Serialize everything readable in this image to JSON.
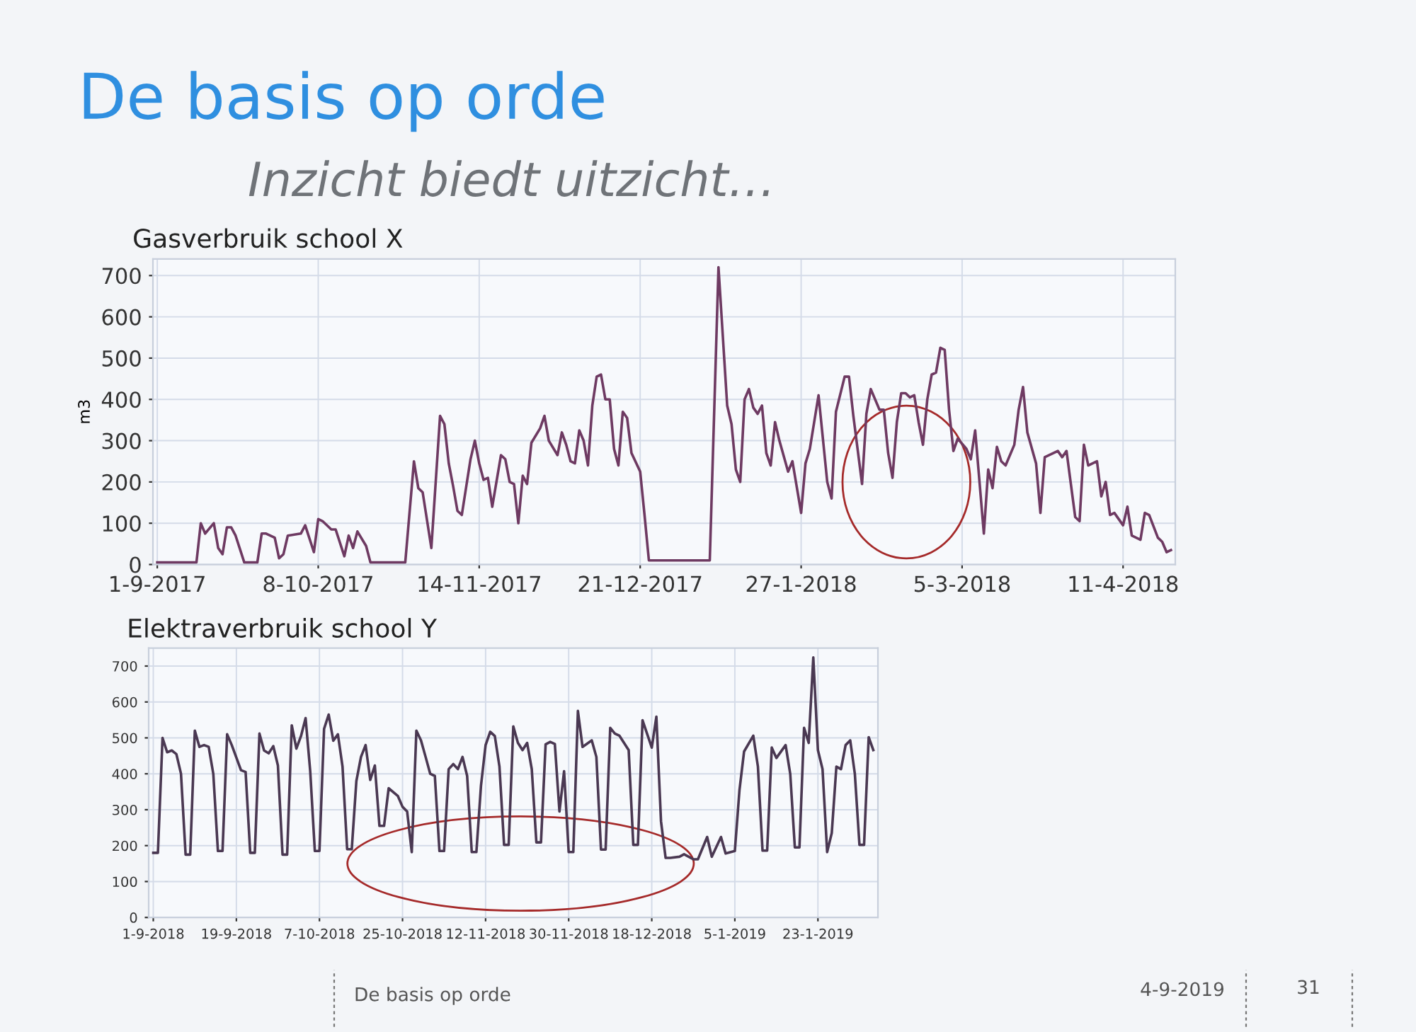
{
  "chart_data": [
    {
      "type": "line",
      "title": "Gasverbruik school X",
      "ylabel": "m3",
      "annotations": [
        "De basis op orde",
        "Inzicht biedt uitzicht…"
      ],
      "x": [
        "2017-09-01",
        "2017-09-10",
        "2017-09-11",
        "2017-09-12",
        "2017-09-14",
        "2017-09-15",
        "2017-09-16",
        "2017-09-17",
        "2017-09-18",
        "2017-09-19",
        "2017-09-21",
        "2017-09-24",
        "2017-09-25",
        "2017-09-26",
        "2017-09-28",
        "2017-09-29",
        "2017-09-30",
        "2017-10-01",
        "2017-10-04",
        "2017-10-05",
        "2017-10-07",
        "2017-10-08",
        "2017-10-09",
        "2017-10-11",
        "2017-10-12",
        "2017-10-14",
        "2017-10-15",
        "2017-10-16",
        "2017-10-17",
        "2017-10-19",
        "2017-10-20",
        "2017-10-28",
        "2017-10-30",
        "2017-10-31",
        "2017-11-01",
        "2017-11-03",
        "2017-11-05",
        "2017-11-06",
        "2017-11-07",
        "2017-11-08",
        "2017-11-09",
        "2017-11-10",
        "2017-11-12",
        "2017-11-13",
        "2017-11-14",
        "2017-11-15",
        "2017-11-16",
        "2017-11-17",
        "2017-11-19",
        "2017-11-20",
        "2017-11-21",
        "2017-11-22",
        "2017-11-23",
        "2017-11-24",
        "2017-11-25",
        "2017-11-26",
        "2017-11-28",
        "2017-11-29",
        "2017-11-30",
        "2017-12-02",
        "2017-12-03",
        "2017-12-04",
        "2017-12-05",
        "2017-12-06",
        "2017-12-07",
        "2017-12-08",
        "2017-12-09",
        "2017-12-10",
        "2017-12-11",
        "2017-12-12",
        "2017-12-13",
        "2017-12-14",
        "2017-12-15",
        "2017-12-16",
        "2017-12-17",
        "2017-12-18",
        "2017-12-19",
        "2017-12-21",
        "2017-12-22",
        "2017-12-23",
        "2018-01-06",
        "2018-01-08",
        "2018-01-10",
        "2018-01-11",
        "2018-01-12",
        "2018-01-13",
        "2018-01-14",
        "2018-01-15",
        "2018-01-16",
        "2018-01-17",
        "2018-01-18",
        "2018-01-19",
        "2018-01-20",
        "2018-01-21",
        "2018-01-22",
        "2018-01-24",
        "2018-01-25",
        "2018-01-27",
        "2018-01-28",
        "2018-01-29",
        "2018-01-30",
        "2018-01-31",
        "2018-02-02",
        "2018-02-03",
        "2018-02-04",
        "2018-02-06",
        "2018-02-07",
        "2018-02-08",
        "2018-02-10",
        "2018-02-11",
        "2018-02-12",
        "2018-02-14",
        "2018-02-15",
        "2018-02-16",
        "2018-02-17",
        "2018-02-18",
        "2018-02-19",
        "2018-02-20",
        "2018-02-21",
        "2018-02-22",
        "2018-02-23",
        "2018-02-24",
        "2018-02-25",
        "2018-02-26",
        "2018-02-27",
        "2018-02-28",
        "2018-03-01",
        "2018-03-02",
        "2018-03-03",
        "2018-03-04",
        "2018-03-06",
        "2018-03-07",
        "2018-03-08",
        "2018-03-09",
        "2018-03-10",
        "2018-03-11",
        "2018-03-12",
        "2018-03-13",
        "2018-03-14",
        "2018-03-15",
        "2018-03-17",
        "2018-03-18",
        "2018-03-19",
        "2018-03-20",
        "2018-03-22",
        "2018-03-23",
        "2018-03-24",
        "2018-03-27",
        "2018-03-28",
        "2018-03-29",
        "2018-03-31",
        "2018-04-01",
        "2018-04-02",
        "2018-04-03",
        "2018-04-05",
        "2018-04-06",
        "2018-04-07",
        "2018-04-08",
        "2018-04-09",
        "2018-04-11",
        "2018-04-12",
        "2018-04-13",
        "2018-04-15",
        "2018-04-16",
        "2018-04-17",
        "2018-04-19",
        "2018-04-20",
        "2018-04-21",
        "2018-04-22"
      ],
      "series": [
        {
          "color": "#6e3a62",
          "values": [
            5,
            5,
            100,
            75,
            100,
            40,
            25,
            90,
            90,
            70,
            5,
            5,
            75,
            75,
            65,
            15,
            25,
            70,
            75,
            95,
            30,
            110,
            105,
            85,
            85,
            20,
            70,
            40,
            80,
            45,
            5,
            5,
            250,
            185,
            175,
            40,
            360,
            340,
            245,
            190,
            130,
            120,
            255,
            300,
            245,
            205,
            210,
            140,
            265,
            255,
            200,
            195,
            100,
            215,
            195,
            295,
            330,
            360,
            300,
            265,
            320,
            290,
            250,
            245,
            325,
            300,
            240,
            385,
            455,
            460,
            400,
            400,
            280,
            240,
            370,
            355,
            270,
            225,
            120,
            10,
            10,
            720,
            385,
            340,
            230,
            200,
            400,
            425,
            380,
            365,
            385,
            270,
            240,
            345,
            300,
            225,
            250,
            125,
            245,
            280,
            345,
            410,
            200,
            160,
            370,
            455,
            455,
            360,
            195,
            365,
            425,
            375,
            375,
            270,
            210,
            345,
            415,
            415,
            405,
            410,
            345,
            290,
            400,
            460,
            465,
            525,
            520,
            375,
            275,
            305,
            280,
            255,
            325,
            200,
            75,
            230,
            185,
            285,
            250,
            240,
            290,
            375,
            430,
            320,
            245,
            125,
            260,
            275,
            260,
            275,
            115,
            105,
            290,
            240,
            250,
            165,
            200,
            120,
            125,
            95,
            140,
            70,
            60,
            125,
            120,
            65,
            55,
            30,
            35
          ]
        }
      ],
      "xlim": [
        "2017-08-31",
        "2018-04-23"
      ],
      "xticks": [
        {
          "value": "2017-09-01",
          "label": "1-9-2017"
        },
        {
          "value": "2017-10-08",
          "label": "8-10-2017"
        },
        {
          "value": "2017-11-14",
          "label": "14-11-2017"
        },
        {
          "value": "2017-12-21",
          "label": "21-12-2017"
        },
        {
          "value": "2018-01-27",
          "label": "27-1-2018"
        },
        {
          "value": "2018-03-05",
          "label": "5-3-2018"
        },
        {
          "value": "2018-04-11",
          "label": "11-4-2018"
        }
      ],
      "ylim": [
        0,
        740
      ],
      "yticks": [
        0,
        100,
        200,
        300,
        400,
        500,
        600,
        700
      ],
      "grid": true,
      "line_style": "solid"
    },
    {
      "type": "line",
      "title": "Elektraverbruik school Y",
      "annotations": [
        "De basis op orde",
        "4-9-2019",
        "31"
      ],
      "x": [
        "2018-09-01",
        "2018-09-02",
        "2018-09-03",
        "2018-09-04",
        "2018-09-05",
        "2018-09-06",
        "2018-09-07",
        "2018-09-08",
        "2018-09-09",
        "2018-09-10",
        "2018-09-11",
        "2018-09-12",
        "2018-09-13",
        "2018-09-14",
        "2018-09-15",
        "2018-09-16",
        "2018-09-17",
        "2018-09-18",
        "2018-09-19",
        "2018-09-20",
        "2018-09-21",
        "2018-09-22",
        "2018-09-23",
        "2018-09-24",
        "2018-09-25",
        "2018-09-26",
        "2018-09-27",
        "2018-09-28",
        "2018-09-29",
        "2018-09-30",
        "2018-10-01",
        "2018-10-02",
        "2018-10-03",
        "2018-10-04",
        "2018-10-05",
        "2018-10-06",
        "2018-10-07",
        "2018-10-08",
        "2018-10-09",
        "2018-10-10",
        "2018-10-11",
        "2018-10-12",
        "2018-10-13",
        "2018-10-14",
        "2018-10-15",
        "2018-10-16",
        "2018-10-17",
        "2018-10-18",
        "2018-10-19",
        "2018-10-20",
        "2018-10-21",
        "2018-10-22",
        "2018-10-24",
        "2018-10-25",
        "2018-10-26",
        "2018-10-27",
        "2018-10-28",
        "2018-10-29",
        "2018-10-30",
        "2018-10-31",
        "2018-11-01",
        "2018-11-02",
        "2018-11-03",
        "2018-11-04",
        "2018-11-05",
        "2018-11-06",
        "2018-11-07",
        "2018-11-08",
        "2018-11-09",
        "2018-11-10",
        "2018-11-11",
        "2018-11-12",
        "2018-11-13",
        "2018-11-14",
        "2018-11-15",
        "2018-11-16",
        "2018-11-17",
        "2018-11-18",
        "2018-11-19",
        "2018-11-20",
        "2018-11-21",
        "2018-11-22",
        "2018-11-23",
        "2018-11-24",
        "2018-11-25",
        "2018-11-26",
        "2018-11-27",
        "2018-11-28",
        "2018-11-29",
        "2018-11-30",
        "2018-12-01",
        "2018-12-02",
        "2018-12-03",
        "2018-12-05",
        "2018-12-06",
        "2018-12-07",
        "2018-12-08",
        "2018-12-09",
        "2018-12-10",
        "2018-12-11",
        "2018-12-13",
        "2018-12-14",
        "2018-12-15",
        "2018-12-16",
        "2018-12-18",
        "2018-12-19",
        "2018-12-20",
        "2018-12-21",
        "2018-12-22",
        "2018-12-24",
        "2018-12-25",
        "2018-12-26",
        "2018-12-27",
        "2018-12-28",
        "2018-12-30",
        "2018-12-31",
        "2019-01-02",
        "2019-01-03",
        "2019-01-05",
        "2019-01-06",
        "2019-01-07",
        "2019-01-09",
        "2019-01-10",
        "2019-01-11",
        "2019-01-12",
        "2019-01-13",
        "2019-01-14",
        "2019-01-16",
        "2019-01-17",
        "2019-01-18",
        "2019-01-19",
        "2019-01-20",
        "2019-01-21",
        "2019-01-22",
        "2019-01-23",
        "2019-01-24",
        "2019-01-25",
        "2019-01-26",
        "2019-01-27",
        "2019-01-28",
        "2019-01-29",
        "2019-01-30",
        "2019-01-31",
        "2019-02-01",
        "2019-02-02",
        "2019-02-03",
        "2019-02-04"
      ],
      "series": [
        {
          "color": "#4a3852",
          "values": [
            180,
            180,
            500,
            460,
            465,
            455,
            400,
            175,
            175,
            520,
            475,
            480,
            475,
            400,
            185,
            185,
            510,
            480,
            445,
            410,
            405,
            180,
            180,
            512,
            465,
            457,
            477,
            423,
            175,
            175,
            535,
            470,
            505,
            555,
            407,
            185,
            185,
            525,
            565,
            492,
            510,
            420,
            190,
            190,
            380,
            447,
            480,
            383,
            423,
            255,
            255,
            360,
            338,
            308,
            295,
            182,
            520,
            493,
            447,
            400,
            394,
            185,
            185,
            413,
            427,
            413,
            447,
            394,
            182,
            182,
            367,
            480,
            517,
            505,
            420,
            202,
            202,
            532,
            486,
            466,
            486,
            413,
            209,
            209,
            482,
            489,
            483,
            295,
            407,
            182,
            182,
            575,
            475,
            493,
            447,
            189,
            189,
            528,
            512,
            506,
            466,
            202,
            202,
            549,
            473,
            559,
            268,
            166,
            166,
            169,
            176,
            169,
            162,
            162,
            224,
            169,
            224,
            178,
            185,
            354,
            462,
            506,
            420,
            186,
            186,
            473,
            444,
            480,
            400,
            195,
            195,
            528,
            486,
            724,
            466,
            413,
            182,
            235,
            420,
            413,
            480,
            493,
            400,
            202,
            202,
            502,
            466
          ]
        }
      ],
      "xlim": [
        "2018-08-31",
        "2019-02-05"
      ],
      "xticks": [
        {
          "value": "2018-09-01",
          "label": "1-9-2018"
        },
        {
          "value": "2018-09-19",
          "label": "19-9-2018"
        },
        {
          "value": "2018-10-07",
          "label": "7-10-2018"
        },
        {
          "value": "2018-10-25",
          "label": "25-10-2018"
        },
        {
          "value": "2018-11-12",
          "label": "12-11-2018"
        },
        {
          "value": "2018-11-30",
          "label": "30-11-2018"
        },
        {
          "value": "2018-12-18",
          "label": "18-12-2018"
        },
        {
          "value": "2019-01-05",
          "label": "5-1-2019"
        },
        {
          "value": "2019-01-23",
          "label": "23-1-2019"
        }
      ],
      "ylim": [
        0,
        750
      ],
      "yticks": [
        0,
        100,
        200,
        300,
        400,
        500,
        600,
        700
      ],
      "grid": true,
      "line_style": "solid"
    }
  ]
}
